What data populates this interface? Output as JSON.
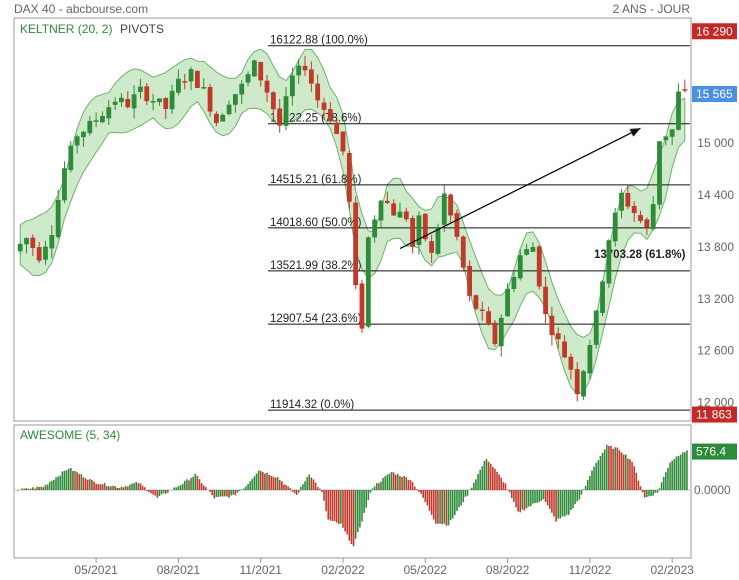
{
  "header": {
    "title": "DAX 40 - abcbourse.com",
    "range": "2 ANS - JOUR"
  },
  "indicators": {
    "keltner": "KELTNER (20, 2)",
    "pivots": "PIVOTS",
    "awesome": "AWESOME (5, 34)"
  },
  "colors": {
    "up": "#2e8b3a",
    "down": "#c0392b",
    "band_fill": "#bfe3b8",
    "band_line": "#6db36a",
    "last_tag": "#4a90e2",
    "level_tag": "#c62828",
    "ao_tag": "#2e8b3a"
  },
  "chart_data": [
    {
      "type": "candlestick",
      "title": "DAX 40",
      "y_ticks": [
        "15 000",
        "14 400",
        "13 800",
        "13 200",
        "12 600",
        "12 000"
      ],
      "y_tick_values": [
        15000,
        14400,
        13800,
        13200,
        12600,
        12000
      ],
      "ylim": [
        11800,
        16420
      ],
      "x_ticks": [
        "05/2021",
        "08/2021",
        "11/2021",
        "02/2022",
        "05/2022",
        "08/2022",
        "11/2022",
        "02/2023"
      ],
      "x_tick_index": [
        12,
        25,
        38,
        51,
        64,
        77,
        90,
        103
      ],
      "weeks": 106,
      "close_path": [
        [
          0,
          13750
        ],
        [
          2,
          13900
        ],
        [
          4,
          13700
        ],
        [
          6,
          14000
        ],
        [
          8,
          14700
        ],
        [
          10,
          15100
        ],
        [
          12,
          15200
        ],
        [
          14,
          15350
        ],
        [
          16,
          15500
        ],
        [
          18,
          15450
        ],
        [
          20,
          15600
        ],
        [
          22,
          15500
        ],
        [
          24,
          15400
        ],
        [
          26,
          15700
        ],
        [
          28,
          15800
        ],
        [
          30,
          15600
        ],
        [
          32,
          15250
        ],
        [
          34,
          15500
        ],
        [
          36,
          15650
        ],
        [
          38,
          15900
        ],
        [
          40,
          15600
        ],
        [
          42,
          15200
        ],
        [
          44,
          15750
        ],
        [
          46,
          15900
        ],
        [
          48,
          15500
        ],
        [
          50,
          15300
        ],
        [
          52,
          14900
        ],
        [
          53,
          14300
        ],
        [
          54,
          13300
        ],
        [
          55,
          12900
        ],
        [
          56,
          13900
        ],
        [
          58,
          14400
        ],
        [
          60,
          14200
        ],
        [
          62,
          14150
        ],
        [
          63,
          13800
        ],
        [
          64,
          14100
        ],
        [
          66,
          13700
        ],
        [
          68,
          14400
        ],
        [
          70,
          13900
        ],
        [
          72,
          13200
        ],
        [
          74,
          13000
        ],
        [
          76,
          12700
        ],
        [
          78,
          13300
        ],
        [
          80,
          13700
        ],
        [
          82,
          13800
        ],
        [
          84,
          13000
        ],
        [
          86,
          12700
        ],
        [
          88,
          12400
        ],
        [
          89,
          12150
        ],
        [
          90,
          12400
        ],
        [
          92,
          13000
        ],
        [
          94,
          13900
        ],
        [
          96,
          14400
        ],
        [
          98,
          14200
        ],
        [
          100,
          14000
        ],
        [
          101,
          14300
        ],
        [
          102,
          15050
        ],
        [
          104,
          15150
        ],
        [
          105,
          15565
        ]
      ],
      "fibonacci": [
        {
          "value": 16122.88,
          "label": "16122.88 (100.0%)"
        },
        {
          "value": 15222.25,
          "label": "15222.25 (78.6%)"
        },
        {
          "value": 14515.21,
          "label": "14515.21 (61.8%)"
        },
        {
          "value": 14018.6,
          "label": "14018.60 (50.0%)"
        },
        {
          "value": 13521.99,
          "label": "13521.99 (38.2%)"
        },
        {
          "value": 12907.54,
          "label": "12907.54 (23.6%)"
        },
        {
          "value": 11914.32,
          "label": "11914.32 (0.0%)"
        }
      ],
      "annotation": "13703.28 (61.8%)",
      "annotation_value": 13703.28,
      "trend_arrow": {
        "from": [
          60,
          13780
        ],
        "to": [
          98,
          15170
        ]
      },
      "price_tags": [
        {
          "label": "16 290",
          "value": 16290,
          "kind": "level"
        },
        {
          "label": "15 565",
          "value": 15565,
          "kind": "last"
        },
        {
          "label": "11 863",
          "value": 11863,
          "kind": "level"
        }
      ]
    },
    {
      "type": "histogram",
      "title": "AWESOME (5, 34)",
      "y_ticks": [
        "0.0000"
      ],
      "zero": 0,
      "last_value": "576.4",
      "lobes": [
        [
          0,
          0
        ],
        [
          4,
          50
        ],
        [
          8,
          330
        ],
        [
          12,
          120
        ],
        [
          16,
          40
        ],
        [
          19,
          110
        ],
        [
          22,
          -120
        ],
        [
          26,
          100
        ],
        [
          28,
          230
        ],
        [
          31,
          -120
        ],
        [
          34,
          -90
        ],
        [
          36,
          60
        ],
        [
          38,
          300
        ],
        [
          41,
          190
        ],
        [
          44,
          -80
        ],
        [
          46,
          250
        ],
        [
          48,
          -40
        ],
        [
          49,
          -450
        ],
        [
          51,
          -520
        ],
        [
          53,
          -850
        ],
        [
          56,
          40
        ],
        [
          59,
          270
        ],
        [
          62,
          160
        ],
        [
          64,
          -120
        ],
        [
          66,
          -490
        ],
        [
          68,
          -520
        ],
        [
          71,
          -70
        ],
        [
          74,
          480
        ],
        [
          77,
          90
        ],
        [
          79,
          -340
        ],
        [
          83,
          -130
        ],
        [
          85,
          -460
        ],
        [
          87,
          -360
        ],
        [
          89,
          -80
        ],
        [
          91,
          360
        ],
        [
          93,
          660
        ],
        [
          95,
          610
        ],
        [
          97,
          430
        ],
        [
          99,
          -120
        ],
        [
          101,
          -40
        ],
        [
          103,
          420
        ],
        [
          105,
          576
        ]
      ]
    }
  ]
}
